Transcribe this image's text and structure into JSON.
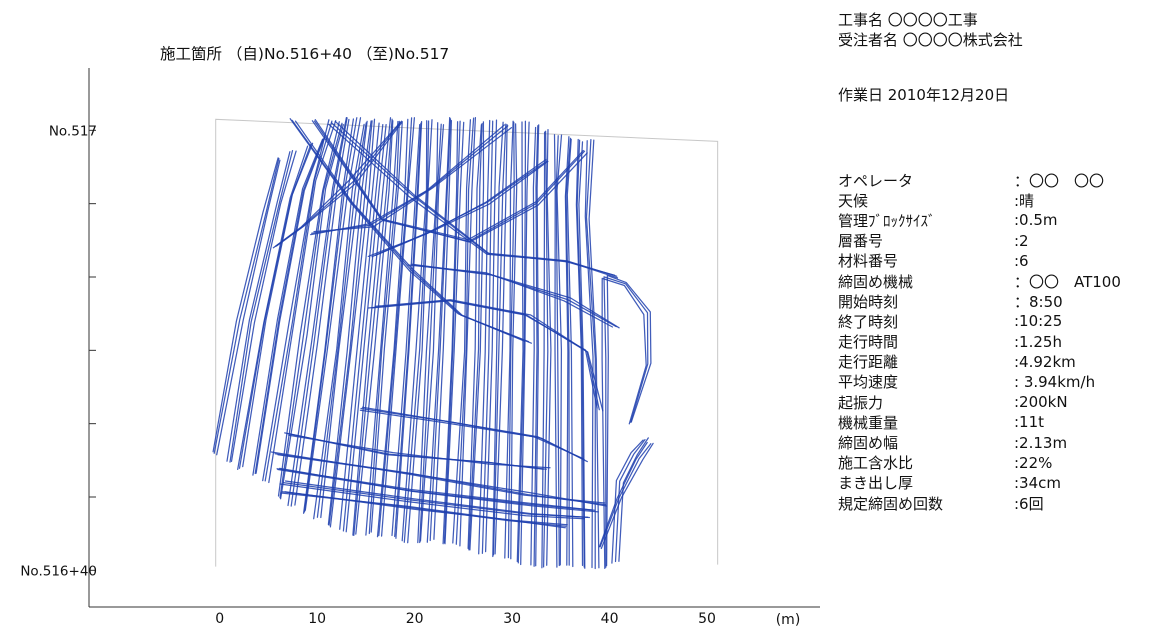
{
  "header": {
    "project_line": "工事名 〇〇〇〇工事",
    "contractor_line": "受注者名 〇〇〇〇株式会社",
    "work_date": "作業日 2010年12月20日"
  },
  "info_rows": [
    {
      "label": "オペレータ",
      "value": "：〇〇　〇〇"
    },
    {
      "label": "天候",
      "value": ":晴"
    },
    {
      "label": "管理ﾌﾞﾛｯｸｻｲｽﾞ",
      "value": ":0.5m"
    },
    {
      "label": "層番号",
      "value": ":2"
    },
    {
      "label": "材料番号",
      "value": ":6"
    },
    {
      "label": "締固め機械",
      "value": "：〇〇　AT100"
    },
    {
      "label": "開始時刻",
      "value": "：8:50"
    },
    {
      "label": "終了時刻",
      "value": ":10:25"
    },
    {
      "label": "走行時間",
      "value": ":1.25h"
    },
    {
      "label": "走行距離",
      "value": ":4.92km"
    },
    {
      "label": "平均速度",
      "value": ": 3.94km/h"
    },
    {
      "label": "起振力",
      "value": ":200kN"
    },
    {
      "label": "機械重量",
      "value": ":11t"
    },
    {
      "label": "締固め幅",
      "value": ":2.13m"
    },
    {
      "label": "施工含水比",
      "value": ":22%"
    },
    {
      "label": "まき出し厚",
      "value": ":34cm"
    },
    {
      "label": "規定締固め回数",
      "value": ":6回"
    }
  ],
  "chart_data": {
    "type": "line",
    "title": "施工箇所 （自)No.516+40 （至)No.517",
    "xlabel": "(m)",
    "ylabel": "",
    "x_ticks": [
      0,
      10,
      20,
      30,
      40,
      50
    ],
    "xlim": [
      -13,
      62
    ],
    "y_tick_labels": [
      {
        "value": 0,
        "label": "No.516+40"
      },
      {
        "value": 1,
        "label": ""
      },
      {
        "value": 2,
        "label": ""
      },
      {
        "value": 3,
        "label": ""
      },
      {
        "value": 4,
        "label": ""
      },
      {
        "value": 5,
        "label": ""
      },
      {
        "value": 6,
        "label": "No.517"
      }
    ],
    "ylim": [
      -0.5,
      6.85
    ],
    "boundary_x": [
      0,
      51.5
    ],
    "series": [
      {
        "color": "#1f3fae",
        "note": "roller track",
        "points": [
          [
            0.0,
            1.6
          ],
          [
            2.5,
            3.4
          ],
          [
            5.0,
            4.9
          ],
          [
            6.5,
            5.6
          ]
        ]
      },
      {
        "color": "#1f3fae",
        "points": [
          [
            1.3,
            1.5
          ],
          [
            3.8,
            3.4
          ],
          [
            6.4,
            5.0
          ],
          [
            8.0,
            5.7
          ]
        ]
      },
      {
        "color": "#1f3fae",
        "points": [
          [
            2.6,
            1.4
          ],
          [
            5.1,
            3.4
          ],
          [
            7.7,
            5.1
          ],
          [
            9.6,
            5.8
          ]
        ]
      },
      {
        "color": "#1f3fae",
        "points": [
          [
            3.9,
            1.3
          ],
          [
            6.4,
            3.4
          ],
          [
            9.0,
            5.2
          ],
          [
            11.1,
            5.9
          ]
        ]
      },
      {
        "color": "#1f3fae",
        "points": [
          [
            5.2,
            1.2
          ],
          [
            7.7,
            3.4
          ],
          [
            10.2,
            5.3
          ],
          [
            12.0,
            6.15
          ]
        ]
      },
      {
        "color": "#1f3fae",
        "points": [
          [
            6.5,
            1.0
          ],
          [
            9.0,
            3.2
          ],
          [
            11.2,
            5.2
          ],
          [
            12.8,
            6.1
          ]
        ]
      },
      {
        "color": "#1f3fae",
        "points": [
          [
            7.8,
            0.9
          ],
          [
            10.2,
            3.1
          ],
          [
            12.3,
            5.2
          ],
          [
            13.6,
            6.15
          ]
        ]
      },
      {
        "color": "#1f3fae",
        "points": [
          [
            9.1,
            0.8
          ],
          [
            11.4,
            3.0
          ],
          [
            13.4,
            5.2
          ],
          [
            14.5,
            6.15
          ]
        ]
      },
      {
        "color": "#1f3fae",
        "points": [
          [
            10.4,
            0.7
          ],
          [
            12.5,
            3.0
          ],
          [
            14.4,
            5.2
          ],
          [
            15.3,
            6.1
          ]
        ]
      },
      {
        "color": "#1f3fae",
        "points": [
          [
            11.7,
            0.6
          ],
          [
            13.6,
            3.0
          ],
          [
            15.4,
            5.2
          ],
          [
            16.2,
            6.15
          ]
        ]
      },
      {
        "color": "#1f3fae",
        "points": [
          [
            13.0,
            0.55
          ],
          [
            14.8,
            3.0
          ],
          [
            16.4,
            5.2
          ],
          [
            17.1,
            6.1
          ]
        ]
      },
      {
        "color": "#1f3fae",
        "points": [
          [
            14.3,
            0.5
          ],
          [
            16.0,
            3.0
          ],
          [
            17.4,
            5.2
          ],
          [
            18.0,
            6.15
          ]
        ]
      },
      {
        "color": "#1f3fae",
        "points": [
          [
            15.6,
            0.5
          ],
          [
            17.2,
            3.0
          ],
          [
            18.4,
            5.2
          ],
          [
            19.0,
            6.1
          ]
        ]
      },
      {
        "color": "#1f3fae",
        "points": [
          [
            16.9,
            0.45
          ],
          [
            18.4,
            3.0
          ],
          [
            19.5,
            5.2
          ],
          [
            20.0,
            6.15
          ]
        ]
      },
      {
        "color": "#1f3fae",
        "points": [
          [
            18.2,
            0.45
          ],
          [
            19.6,
            3.0
          ],
          [
            20.6,
            5.2
          ],
          [
            21.0,
            6.1
          ]
        ]
      },
      {
        "color": "#1f3fae",
        "points": [
          [
            19.5,
            0.4
          ],
          [
            20.8,
            3.0
          ],
          [
            21.7,
            5.2
          ],
          [
            22.0,
            6.15
          ]
        ]
      },
      {
        "color": "#1f3fae",
        "points": [
          [
            20.8,
            0.4
          ],
          [
            22.0,
            3.0
          ],
          [
            22.8,
            5.2
          ],
          [
            23.0,
            6.1
          ]
        ]
      },
      {
        "color": "#1f3fae",
        "points": [
          [
            22.1,
            0.4
          ],
          [
            23.2,
            3.0
          ],
          [
            23.9,
            5.2
          ],
          [
            24.1,
            6.15
          ]
        ]
      },
      {
        "color": "#1f3fae",
        "points": [
          [
            23.4,
            0.35
          ],
          [
            24.4,
            3.0
          ],
          [
            25.0,
            5.2
          ],
          [
            25.2,
            6.1
          ]
        ]
      },
      {
        "color": "#1f3fae",
        "points": [
          [
            24.7,
            0.35
          ],
          [
            25.6,
            3.0
          ],
          [
            26.1,
            5.2
          ],
          [
            26.3,
            6.15
          ]
        ]
      },
      {
        "color": "#1f3fae",
        "points": [
          [
            26.0,
            0.3
          ],
          [
            26.8,
            3.0
          ],
          [
            27.2,
            5.2
          ],
          [
            27.4,
            6.1
          ]
        ]
      },
      {
        "color": "#1f3fae",
        "points": [
          [
            27.3,
            0.25
          ],
          [
            28.0,
            3.0
          ],
          [
            28.3,
            5.2
          ],
          [
            28.5,
            6.15
          ]
        ]
      },
      {
        "color": "#1f3fae",
        "points": [
          [
            28.6,
            0.2
          ],
          [
            29.2,
            3.0
          ],
          [
            29.4,
            5.2
          ],
          [
            29.6,
            6.1
          ]
        ]
      },
      {
        "color": "#1f3fae",
        "points": [
          [
            29.9,
            0.15
          ],
          [
            30.4,
            3.0
          ],
          [
            30.5,
            5.2
          ],
          [
            30.7,
            6.1
          ]
        ]
      },
      {
        "color": "#1f3fae",
        "points": [
          [
            31.2,
            0.1
          ],
          [
            31.6,
            3.0
          ],
          [
            31.6,
            5.2
          ],
          [
            31.8,
            6.1
          ]
        ]
      },
      {
        "color": "#1f3fae",
        "points": [
          [
            32.5,
            0.08
          ],
          [
            32.8,
            3.0
          ],
          [
            32.7,
            5.2
          ],
          [
            32.9,
            6.05
          ]
        ]
      },
      {
        "color": "#1f3fae",
        "points": [
          [
            33.8,
            0.06
          ],
          [
            34.0,
            3.0
          ],
          [
            33.8,
            5.2
          ],
          [
            34.0,
            6.0
          ]
        ]
      },
      {
        "color": "#1f3fae",
        "points": [
          [
            35.1,
            0.05
          ],
          [
            35.2,
            3.0
          ],
          [
            34.9,
            5.2
          ],
          [
            35.1,
            5.95
          ]
        ]
      },
      {
        "color": "#1f3fae",
        "points": [
          [
            36.4,
            0.05
          ],
          [
            36.4,
            3.0
          ],
          [
            36.0,
            5.1
          ],
          [
            36.3,
            5.9
          ]
        ]
      },
      {
        "color": "#1f3fae",
        "points": [
          [
            37.7,
            0.05
          ],
          [
            37.6,
            3.0
          ],
          [
            37.2,
            5.0
          ],
          [
            37.5,
            5.85
          ]
        ]
      },
      {
        "color": "#1f3fae",
        "points": [
          [
            39.0,
            0.05
          ],
          [
            38.8,
            2.9
          ],
          [
            38.2,
            4.8
          ],
          [
            38.4,
            5.85
          ]
        ]
      },
      {
        "color": "#1f3fae",
        "points": [
          [
            40.0,
            0.05
          ],
          [
            39.9,
            2.9
          ],
          [
            40.0,
            4.0
          ],
          [
            42.0,
            3.9
          ],
          [
            44.2,
            3.5
          ],
          [
            44.5,
            2.8
          ],
          [
            42.5,
            2.0
          ]
        ]
      },
      {
        "color": "#1f3fae",
        "points": [
          [
            41.0,
            0.1
          ],
          [
            41.5,
            1.2
          ],
          [
            43.0,
            1.6
          ],
          [
            44.2,
            1.8
          ]
        ]
      },
      {
        "color": "#1f3fae",
        "points": [
          [
            39.5,
            0.3
          ],
          [
            41.5,
            1.0
          ],
          [
            43.5,
            1.5
          ],
          [
            44.5,
            1.75
          ]
        ]
      },
      {
        "color": "#1f3fae",
        "points": [
          [
            6.0,
            1.6
          ],
          [
            20.0,
            1.3
          ],
          [
            32.0,
            1.05
          ],
          [
            40.0,
            0.9
          ]
        ]
      },
      {
        "color": "#1f3fae",
        "points": [
          [
            6.5,
            1.4
          ],
          [
            20.0,
            1.1
          ],
          [
            32.0,
            0.9
          ],
          [
            39.0,
            0.8
          ]
        ]
      },
      {
        "color": "#1f3fae",
        "points": [
          [
            6.8,
            1.2
          ],
          [
            20.0,
            0.95
          ],
          [
            32.0,
            0.75
          ],
          [
            38.0,
            0.7
          ]
        ]
      },
      {
        "color": "#1f3fae",
        "points": [
          [
            7.0,
            1.05
          ],
          [
            20.0,
            0.85
          ],
          [
            30.0,
            0.7
          ],
          [
            36.0,
            0.6
          ]
        ]
      },
      {
        "color": "#1f3fae",
        "points": [
          [
            7.2,
            1.85
          ],
          [
            18.0,
            1.6
          ],
          [
            28.0,
            1.45
          ],
          [
            34.0,
            1.4
          ]
        ]
      },
      {
        "color": "#1f3fae",
        "points": [
          [
            8.0,
            6.15
          ],
          [
            14.0,
            5.0
          ],
          [
            20.0,
            4.1
          ],
          [
            25.0,
            3.5
          ],
          [
            32.0,
            3.1
          ]
        ]
      },
      {
        "color": "#1f3fae",
        "points": [
          [
            10.0,
            6.15
          ],
          [
            17.0,
            4.8
          ],
          [
            26.0,
            4.5
          ],
          [
            33.0,
            5.0
          ],
          [
            38.0,
            5.7
          ]
        ]
      },
      {
        "color": "#1f3fae",
        "points": [
          [
            12.0,
            6.1
          ],
          [
            20.0,
            5.1
          ],
          [
            28.0,
            4.3
          ],
          [
            36.0,
            4.2
          ],
          [
            41.0,
            4.0
          ]
        ]
      },
      {
        "color": "#1f3fae",
        "points": [
          [
            19.0,
            6.1
          ],
          [
            14.0,
            5.3
          ],
          [
            9.0,
            4.7
          ],
          [
            6.0,
            4.4
          ]
        ]
      },
      {
        "color": "#1f3fae",
        "points": [
          [
            30.0,
            6.05
          ],
          [
            22.0,
            5.2
          ],
          [
            16.0,
            4.7
          ],
          [
            10.0,
            4.6
          ]
        ]
      },
      {
        "color": "#1f3fae",
        "points": [
          [
            34.0,
            5.6
          ],
          [
            28.0,
            5.0
          ],
          [
            22.0,
            4.6
          ],
          [
            16.0,
            4.3
          ]
        ]
      },
      {
        "color": "#1f3fae",
        "points": [
          [
            16.0,
            3.6
          ],
          [
            24.0,
            3.7
          ],
          [
            32.0,
            3.5
          ],
          [
            38.0,
            3.0
          ],
          [
            39.5,
            2.2
          ]
        ]
      },
      {
        "color": "#1f3fae",
        "points": [
          [
            15.0,
            2.2
          ],
          [
            24.0,
            2.0
          ],
          [
            33.0,
            1.8
          ],
          [
            38.0,
            1.5
          ]
        ]
      },
      {
        "color": "#1f3fae",
        "points": [
          [
            20.0,
            4.15
          ],
          [
            28.0,
            4.05
          ],
          [
            36.0,
            3.7
          ],
          [
            41.0,
            3.3
          ]
        ]
      }
    ]
  }
}
